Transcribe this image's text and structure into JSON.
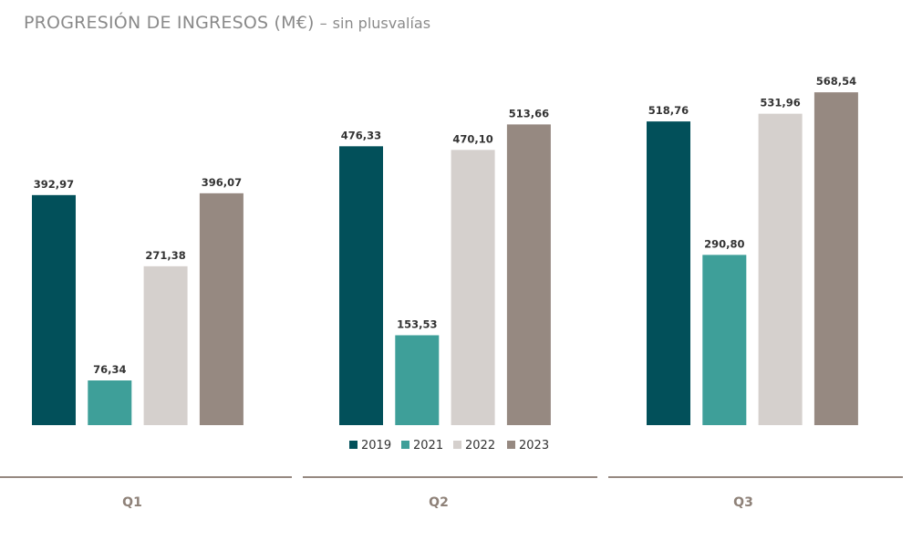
{
  "title": {
    "main": "PROGRESIÓN DE INGRESOS (M€)",
    "separator": "–",
    "subtitle": "sin plusvalías"
  },
  "chart_data": {
    "type": "bar",
    "categories": [
      "Q1",
      "Q2",
      "Q3"
    ],
    "series": [
      {
        "name": "2019",
        "color": "#02505a",
        "values": [
          392.97,
          476.33,
          518.76
        ],
        "labels": [
          "392,97",
          "476,33",
          "518,76"
        ]
      },
      {
        "name": "2021",
        "color": "#3e9f99",
        "values": [
          76.34,
          153.53,
          290.8
        ],
        "labels": [
          "76,34",
          "153,53",
          "290,80"
        ]
      },
      {
        "name": "2022",
        "color": "#d5d0cd",
        "values": [
          271.38,
          470.1,
          531.96
        ],
        "labels": [
          "271,38",
          "470,10",
          "531,96"
        ]
      },
      {
        "name": "2023",
        "color": "#968981",
        "values": [
          396.07,
          513.66,
          568.54
        ],
        "labels": [
          "396,07",
          "513,66",
          "568,54"
        ]
      }
    ],
    "legend": "bottom-center",
    "grid": false,
    "separator_color": "#968981",
    "category_label_color": "#8e8178"
  }
}
